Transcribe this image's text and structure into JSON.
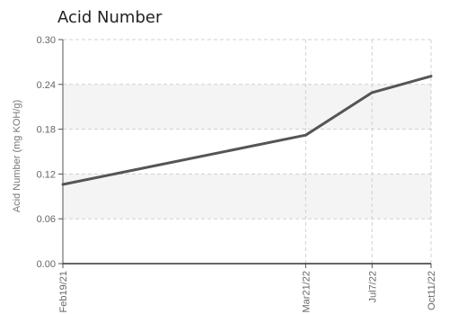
{
  "chart_data": {
    "type": "line",
    "title": "Acid Number",
    "ylabel": "Acid Number (mg KOH/g)",
    "xlabel": "",
    "ylim": [
      0,
      0.3
    ],
    "yticks": [
      "0.00",
      "0.06",
      "0.12",
      "0.18",
      "0.24",
      "0.30"
    ],
    "x": [
      "Feb19/21",
      "Mar21/22",
      "Jul7/22",
      "Oct11/22"
    ],
    "x_dates": [
      "2021-02-19",
      "2022-03-21",
      "2022-07-07",
      "2022-10-11"
    ],
    "series": [
      {
        "values": [
          0.106,
          0.172,
          0.229,
          0.251
        ]
      }
    ],
    "grid": true,
    "line_color": "#555555",
    "band_color": "#f4f4f4"
  }
}
